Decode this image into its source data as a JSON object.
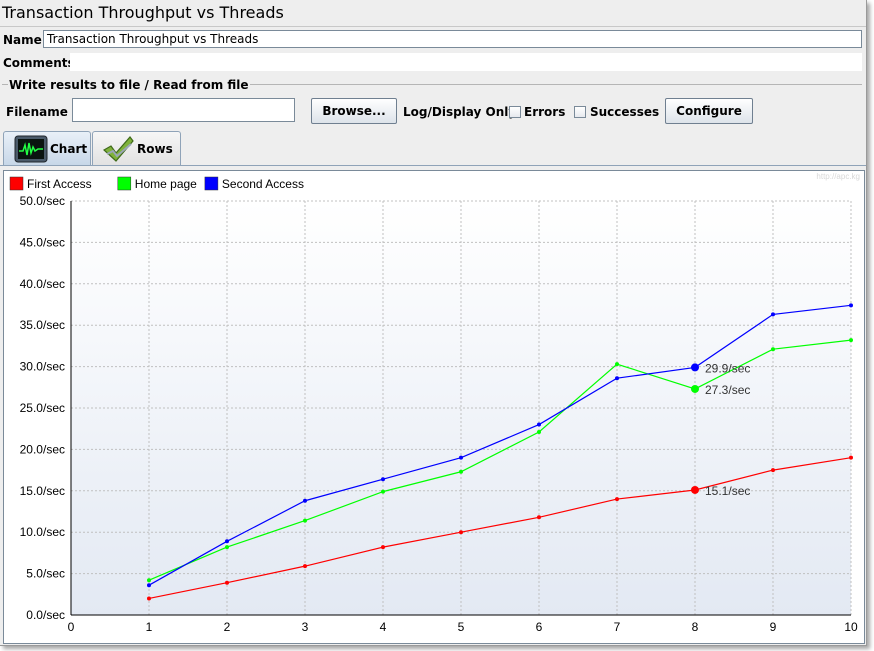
{
  "window": {
    "title": "Transaction Throughput vs Threads"
  },
  "form": {
    "name_label": "Name:",
    "name_value": "Transaction Throughput vs Threads",
    "comments_label": "Comments:",
    "comments_value": "",
    "group_title": "Write results to file / Read from file",
    "filename_label": "Filename",
    "filename_value": "",
    "browse_label": "Browse...",
    "log_display_label": "Log/Display Only:",
    "errors_label": "Errors",
    "errors_checked": false,
    "successes_label": "Successes",
    "successes_checked": false,
    "configure_label": "Configure"
  },
  "tabs": [
    {
      "label": "Chart",
      "icon": "chart-icon",
      "selected": true
    },
    {
      "label": "Rows",
      "icon": "checkmark-icon",
      "selected": false
    }
  ],
  "watermark": "http://apc.kg",
  "colors": {
    "first_access": "#ff0000",
    "home_page": "#00ff00",
    "second_access": "#0000ff",
    "grid": "#c0c0c0",
    "plot_bg_top": "#ffffff",
    "plot_bg_bottom": "#e3e9f3"
  },
  "chart_data": {
    "type": "line",
    "title": "",
    "xlabel": "",
    "ylabel": "",
    "xlim": [
      0,
      10
    ],
    "ylim": [
      0,
      50
    ],
    "x_ticks": [
      "0",
      "1",
      "2",
      "3",
      "4",
      "5",
      "6",
      "7",
      "8",
      "9",
      "10"
    ],
    "y_ticks": [
      "0.0/sec",
      "5.0/sec",
      "10.0/sec",
      "15.0/sec",
      "20.0/sec",
      "25.0/sec",
      "30.0/sec",
      "35.0/sec",
      "40.0/sec",
      "45.0/sec",
      "50.0/sec"
    ],
    "grid": true,
    "legend_position": "top-left",
    "x": [
      1,
      2,
      3,
      4,
      5,
      6,
      7,
      8,
      9,
      10
    ],
    "series": [
      {
        "name": "First Access",
        "color": "#ff0000",
        "values": [
          2.0,
          3.9,
          5.9,
          8.2,
          10.0,
          11.8,
          14.0,
          15.1,
          17.5,
          19.0
        ]
      },
      {
        "name": "Home page",
        "color": "#00ff00",
        "values": [
          4.2,
          8.2,
          11.4,
          14.9,
          17.3,
          22.1,
          30.3,
          27.3,
          32.1,
          33.2
        ]
      },
      {
        "name": "Second Access",
        "color": "#0000ff",
        "values": [
          3.6,
          8.9,
          13.8,
          16.4,
          19.0,
          23.0,
          28.6,
          29.9,
          36.3,
          37.4
        ]
      }
    ],
    "annotations": [
      {
        "series": "Second Access",
        "x": 8,
        "text": "29.9/sec"
      },
      {
        "series": "Home page",
        "x": 8,
        "text": "27.3/sec"
      },
      {
        "series": "First Access",
        "x": 8,
        "text": "15.1/sec"
      }
    ]
  }
}
